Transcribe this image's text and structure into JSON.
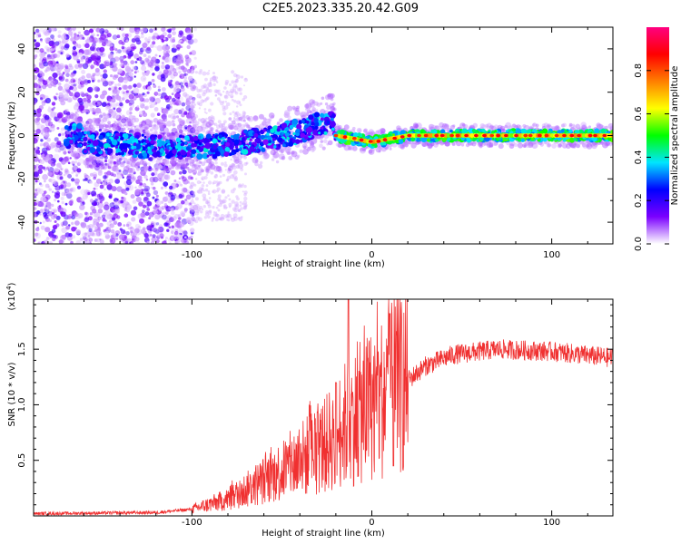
{
  "title": "C2E5.2023.335.20.42.G09",
  "chart_data": [
    {
      "type": "heatmap",
      "name": "spectrogram",
      "xlabel": "Height of straight line (km)",
      "ylabel": "Frequency (Hz)",
      "xlim": [
        -188,
        134
      ],
      "ylim": [
        -50,
        50
      ],
      "xticks": [
        -100,
        0,
        100
      ],
      "xticks_labels": [
        "-100",
        "0",
        "100"
      ],
      "yticks": [
        -40,
        -20,
        0,
        20,
        40
      ],
      "yticks_labels": [
        "-40",
        "-20",
        "0",
        "20",
        "40"
      ],
      "colorbar": {
        "label": "Normalized spectral amplitude",
        "range": [
          0,
          1
        ],
        "ticks": [
          0.0,
          0.2,
          0.4,
          0.6,
          0.8
        ],
        "ticks_labels": [
          "0.0",
          "0.2",
          "0.4",
          "0.6",
          "0.8"
        ],
        "colormap": [
          "#ffffff",
          "#7b00ff",
          "#0000ff",
          "#00e5ff",
          "#00ff00",
          "#ffff00",
          "#ff7f00",
          "#ff0000",
          "#ff0080"
        ]
      },
      "ridge": [
        {
          "x": -160,
          "y": -3
        },
        {
          "x": -120,
          "y": -5
        },
        {
          "x": -90,
          "y": -5
        },
        {
          "x": -60,
          "y": -2
        },
        {
          "x": -40,
          "y": 2
        },
        {
          "x": -22,
          "y": 7
        },
        {
          "x": -20,
          "y": 0
        },
        {
          "x": 0,
          "y": -3
        },
        {
          "x": 20,
          "y": 0
        },
        {
          "x": 134,
          "y": 0
        }
      ]
    },
    {
      "type": "line",
      "name": "snr",
      "xlabel": "Height of straight line (km)",
      "ylabel": "SNR (10 * v/v)",
      "yscale_label": "(x10",
      "yscale_exp": "4",
      "yscale_close": ")",
      "xlim": [
        -188,
        134
      ],
      "ylim": [
        0,
        1.95
      ],
      "xticks": [
        -100,
        0,
        100
      ],
      "xticks_labels": [
        "-100",
        "0",
        "100"
      ],
      "yticks": [
        0.5,
        1.0,
        1.5
      ],
      "yticks_labels": [
        "0.5",
        "1.0",
        "1.5"
      ],
      "color": "#f03030",
      "envelope": [
        {
          "x": -188,
          "y": 0.02
        },
        {
          "x": -120,
          "y": 0.03
        },
        {
          "x": -100,
          "y": 0.06
        },
        {
          "x": -80,
          "y": 0.15
        },
        {
          "x": -60,
          "y": 0.32
        },
        {
          "x": -40,
          "y": 0.5
        },
        {
          "x": -25,
          "y": 0.65
        },
        {
          "x": -15,
          "y": 0.82
        },
        {
          "x": 0,
          "y": 1.0
        },
        {
          "x": 10,
          "y": 1.12
        },
        {
          "x": 20,
          "y": 1.22
        },
        {
          "x": 30,
          "y": 1.35
        },
        {
          "x": 45,
          "y": 1.45
        },
        {
          "x": 70,
          "y": 1.5
        },
        {
          "x": 100,
          "y": 1.48
        },
        {
          "x": 134,
          "y": 1.42
        }
      ],
      "spikes": [
        {
          "x": -13,
          "y": 1.95
        },
        {
          "x": 10,
          "y": 1.82
        },
        {
          "x": 12,
          "y": 0.45
        },
        {
          "x": -20,
          "y": 1.2
        }
      ]
    }
  ]
}
